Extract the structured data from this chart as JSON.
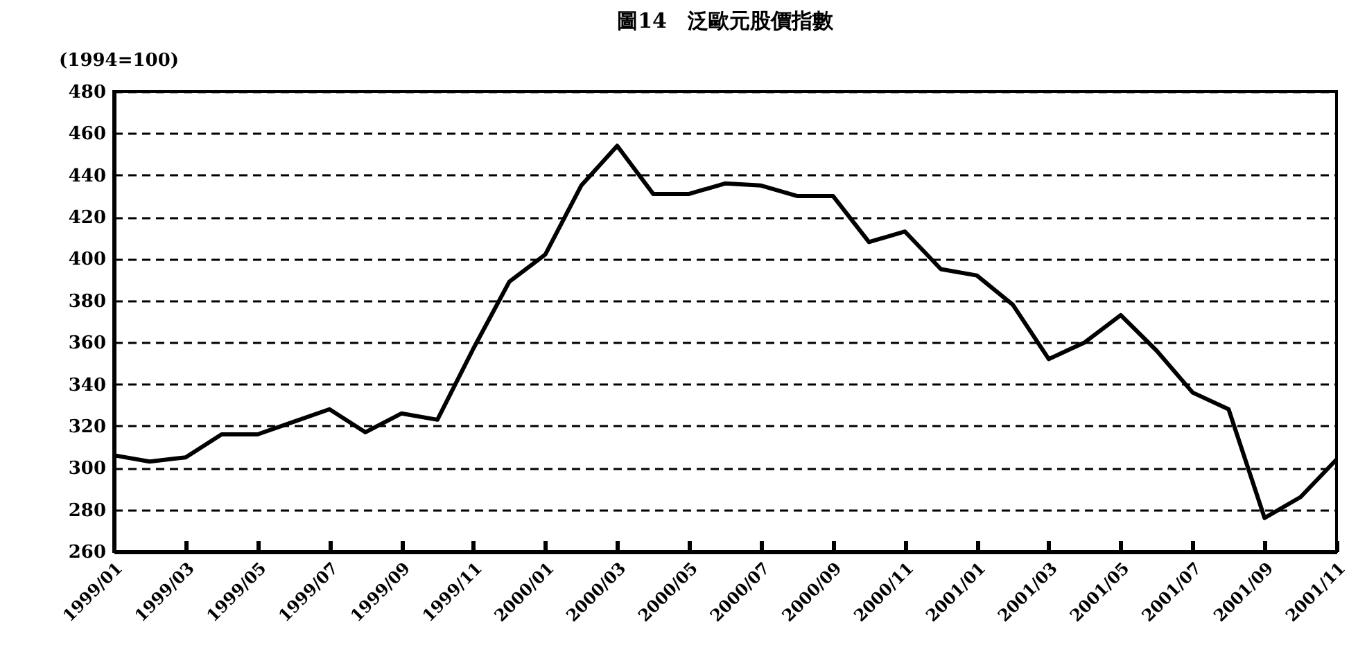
{
  "chart_data": {
    "type": "line",
    "title": "圖14　泛歐元股價指數",
    "ylabel": "(1994=100)",
    "categories": [
      "1999/01",
      null,
      "1999/03",
      null,
      "1999/05",
      null,
      "1999/07",
      null,
      "1999/09",
      null,
      "1999/11",
      null,
      "2000/01",
      null,
      "2000/03",
      null,
      "2000/05",
      null,
      "2000/07",
      null,
      "2000/09",
      null,
      "2000/11",
      null,
      "2001/01",
      null,
      "2001/03",
      null,
      "2001/05",
      null,
      "2001/07",
      null,
      "2001/09",
      null,
      "2001/11"
    ],
    "series": [
      {
        "color": "#000000",
        "values": [
          306,
          303,
          305,
          316,
          316,
          322,
          328,
          317,
          326,
          323,
          357,
          389,
          402,
          435,
          454,
          431,
          431,
          436,
          435,
          430,
          430,
          408,
          413,
          395,
          392,
          378,
          352,
          360,
          373,
          356,
          336,
          328,
          276,
          286,
          304
        ]
      }
    ],
    "ylim": [
      260,
      480
    ],
    "yticks": [
      260,
      280,
      300,
      320,
      340,
      360,
      380,
      400,
      420,
      440,
      460,
      480
    ],
    "grid": "y",
    "line_style": "solid",
    "marker": "none"
  }
}
